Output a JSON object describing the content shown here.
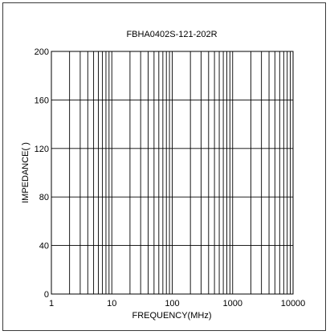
{
  "chart_data": {
    "type": "line",
    "title": "FBHA0402S-121-202R",
    "xlabel": "FREQUENCY(MHz)",
    "ylabel": "IMPEDANCE(  )",
    "x_scale": "log",
    "xlim": [
      1,
      10000
    ],
    "ylim": [
      0,
      200
    ],
    "x_ticks": [
      1,
      10,
      100,
      1000,
      10000
    ],
    "x_tick_labels": [
      "1",
      "10",
      "100",
      "1000",
      "10000"
    ],
    "y_ticks": [
      0,
      40,
      80,
      120,
      160,
      200
    ],
    "y_tick_labels": [
      "0",
      "40",
      "80",
      "120",
      "160",
      "200"
    ],
    "grid": true,
    "series": []
  }
}
